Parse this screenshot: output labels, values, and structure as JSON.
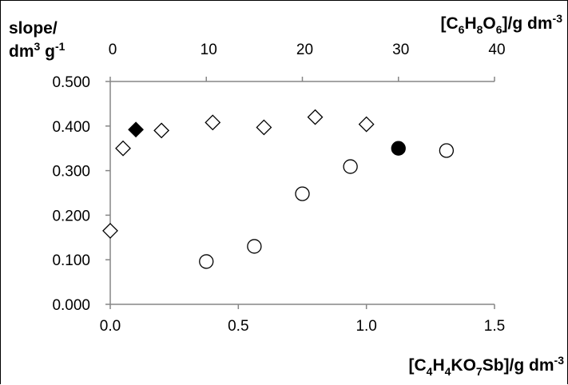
{
  "chart_data": {
    "type": "scatter",
    "title": "",
    "ylabel_line1": "slope/",
    "ylabel_line2_main": "dm",
    "ylabel_line2_sup1": "3",
    "ylabel_line2_mid": " g",
    "ylabel_line2_sup2": "-1",
    "xlabel_bottom": {
      "parts": [
        {
          "t": "[C",
          "s": "n"
        },
        {
          "t": "4",
          "s": "sub"
        },
        {
          "t": "H",
          "s": "n"
        },
        {
          "t": "4",
          "s": "sub"
        },
        {
          "t": "KO",
          "s": "n"
        },
        {
          "t": "7",
          "s": "sub"
        },
        {
          "t": "Sb]/g  dm",
          "s": "n"
        },
        {
          "t": "-3",
          "s": "sup"
        }
      ]
    },
    "xlabel_top": {
      "parts": [
        {
          "t": "[C",
          "s": "n"
        },
        {
          "t": "6",
          "s": "sub"
        },
        {
          "t": "H",
          "s": "n"
        },
        {
          "t": "8",
          "s": "sub"
        },
        {
          "t": "O",
          "s": "n"
        },
        {
          "t": "6",
          "s": "sub"
        },
        {
          "t": "]/g  dm",
          "s": "n"
        },
        {
          "t": "-3",
          "s": "sup"
        }
      ]
    },
    "ylim": [
      0,
      0.5
    ],
    "yticks": [
      "0.000",
      "0.100",
      "0.200",
      "0.300",
      "0.400",
      "0.500"
    ],
    "x_bottom_lim": [
      0,
      1.5
    ],
    "x_bottom_ticks": [
      "0.0",
      "0.5",
      "1.0",
      "1.5"
    ],
    "x_top_lim": [
      0,
      40
    ],
    "x_top_ticks": [
      "0",
      "10",
      "20",
      "30",
      "40"
    ],
    "grid": false,
    "series": [
      {
        "marker": "diamond-open",
        "axis": "bottom",
        "x": [
          0.0,
          0.05,
          0.2,
          0.4,
          0.6,
          0.8,
          1.0
        ],
        "y": [
          0.165,
          0.35,
          0.39,
          0.408,
          0.397,
          0.42,
          0.404
        ]
      },
      {
        "marker": "diamond-filled",
        "axis": "bottom",
        "x": [
          0.1
        ],
        "y": [
          0.392
        ]
      },
      {
        "marker": "circle-open",
        "axis": "top",
        "x": [
          10.0,
          15.0,
          20.0,
          25.0,
          35.0
        ],
        "y": [
          0.096,
          0.13,
          0.248,
          0.309,
          0.345
        ]
      },
      {
        "marker": "circle-filled",
        "axis": "top",
        "x": [
          30.0
        ],
        "y": [
          0.35
        ]
      }
    ]
  }
}
